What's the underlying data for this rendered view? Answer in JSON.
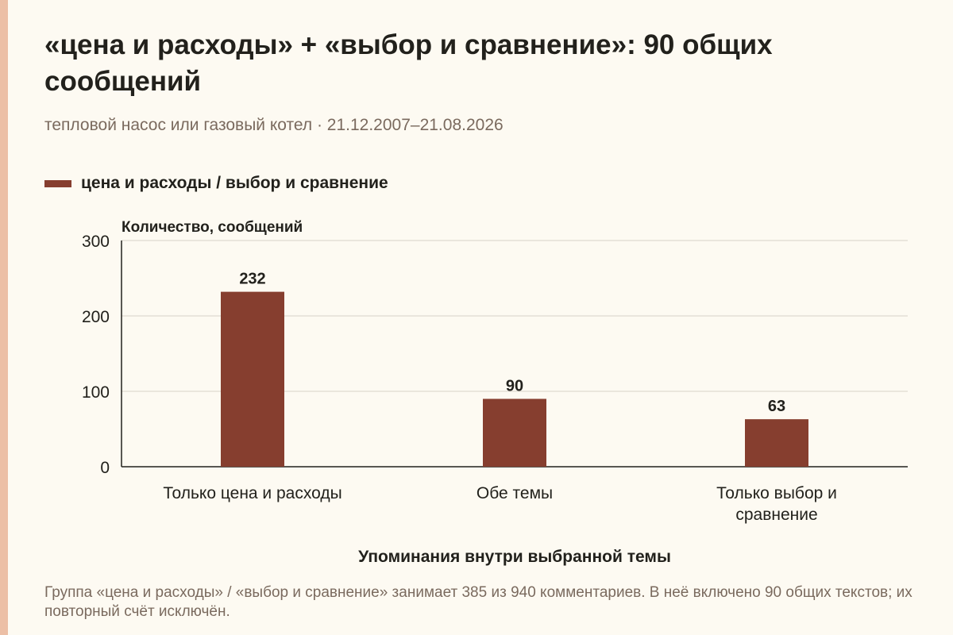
{
  "title": "«цена и расходы» + «выбор и сравнение»: 90 общих сообщений",
  "subtitle": "тепловой насос или газовый котел · 21.12.2007–21.08.2026",
  "legend": {
    "label": "цена и расходы / выбор и сравнение"
  },
  "chart_data": {
    "type": "bar",
    "categories": [
      [
        "Только цена и расходы"
      ],
      [
        "Обе темы"
      ],
      [
        "Только выбор и",
        "сравнение"
      ]
    ],
    "series": [
      {
        "name": "цена и расходы / выбор и сравнение",
        "values": [
          232,
          90,
          63
        ],
        "color": "#863e2f"
      }
    ],
    "ylabel": "Количество, сообщений",
    "xlabel": "Упоминания внутри выбранной темы",
    "ylim": [
      0,
      300
    ],
    "yticks": [
      0,
      100,
      200,
      300
    ],
    "grid": true,
    "legend_position": "top-left"
  },
  "note": "Группа «цена и расходы» / «выбор и сравнение» занимает 385 из 940 комментариев. В неё включено 90 общих текстов; их повторный счёт исключён."
}
